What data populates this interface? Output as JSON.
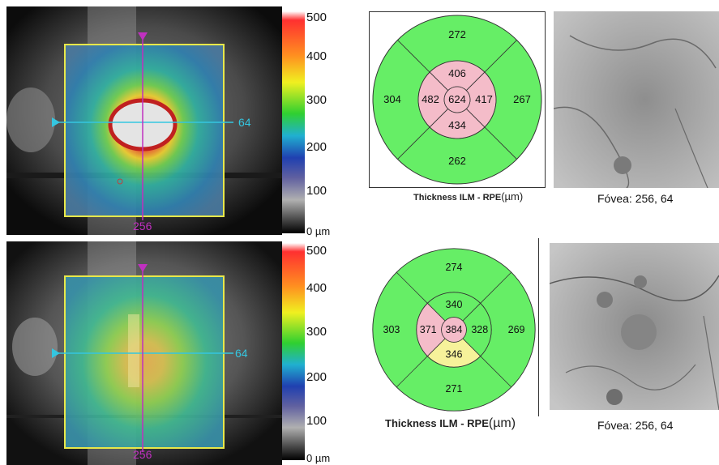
{
  "colorbar": {
    "labels": [
      "500",
      "400",
      "300",
      "200",
      "100",
      "0 µm"
    ]
  },
  "panels": [
    {
      "scan": {
        "horizontal_line_label": "64",
        "vertical_line_label": "256",
        "map_style": "thick"
      },
      "etdrs": {
        "center": "624",
        "inner_superior": "406",
        "inner_nasal": "417",
        "inner_inferior": "434",
        "inner_temporal": "482",
        "outer_superior": "272",
        "outer_nasal": "267",
        "outer_inferior": "262",
        "outer_temporal": "304",
        "colors": {
          "center": "#f4bcc9",
          "inner_superior": "#f4bcc9",
          "inner_nasal": "#f4bcc9",
          "inner_inferior": "#f4bcc9",
          "inner_temporal": "#f4bcc9",
          "outer": "#66ee66"
        }
      },
      "caption": {
        "bold": "Thickness ILM - RPE",
        "unit": "(µm)"
      },
      "fovea": "Fóvea: 256, 64"
    },
    {
      "scan": {
        "horizontal_line_label": "64",
        "vertical_line_label": "256",
        "map_style": "normal"
      },
      "etdrs": {
        "center": "384",
        "inner_superior": "340",
        "inner_nasal": "328",
        "inner_inferior": "346",
        "inner_temporal": "371",
        "outer_superior": "274",
        "outer_nasal": "269",
        "outer_inferior": "271",
        "outer_temporal": "303",
        "colors": {
          "center": "#f4bcc9",
          "inner_superior": "#66ee66",
          "inner_nasal": "#66ee66",
          "inner_inferior": "#f6f29a",
          "inner_temporal": "#f4bcc9",
          "outer": "#66ee66"
        }
      },
      "caption": {
        "bold": "Thickness ILM - RPE",
        "unit": "(µm)"
      },
      "fovea": "Fóvea: 256, 64"
    }
  ],
  "colors": {
    "scan_box": "#e8e84a",
    "horizontal_line": "#34c6e0",
    "vertical_line": "#c030c0",
    "sector_border": "#333333"
  }
}
